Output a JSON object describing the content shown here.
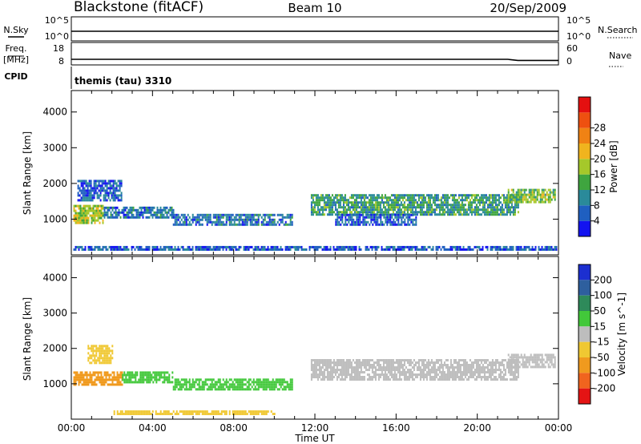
{
  "header": {
    "station": "Blackstone (fitACF)",
    "beam": "Beam 10",
    "date": "20/Sep/2009"
  },
  "strips": {
    "nsky_label": "N.Sky",
    "nsky_top": "10^5",
    "nsky_bottom": "10^0",
    "nsearch_label": "N.Search",
    "nsearch_top": "10^5",
    "nsearch_bottom": "10^0",
    "freq_label": "Freq.",
    "freq_unit": "[MHz]",
    "freq_top": "18",
    "freq_bottom": "8",
    "nave_label": "Nave",
    "nave_top": "60",
    "nave_bottom": "0",
    "cpid_label": "CPID",
    "cpid_value": "themis (tau) 3310"
  },
  "axes": {
    "y_label": "Slant Range [km]",
    "y_ticks": [
      "1000",
      "2000",
      "3000",
      "4000"
    ],
    "x_label": "Time UT",
    "x_ticks": [
      "00:00",
      "04:00",
      "08:00",
      "12:00",
      "16:00",
      "20:00",
      "00:00"
    ]
  },
  "colorbars": {
    "power": {
      "label": "Power [dB]",
      "ticks": [
        "4",
        "8",
        "12",
        "16",
        "20",
        "24",
        "28"
      ],
      "colors": [
        "#1313f0",
        "#1f5fc0",
        "#2a8a9a",
        "#3fa53f",
        "#a5c82a",
        "#f0b41e",
        "#f08214",
        "#ee5010",
        "#e41010"
      ]
    },
    "velocity": {
      "label": "Velocity [m s^-1]",
      "ticks": [
        "200",
        "100",
        "50",
        "15",
        "-15",
        "-50",
        "-100",
        "-200"
      ],
      "colors": [
        "#1c2fd0",
        "#2e5f9e",
        "#2e8a5a",
        "#42c83a",
        "#bdbdbd",
        "#f0c832",
        "#f09a1e",
        "#f0641e",
        "#e41414"
      ]
    }
  },
  "chart_data": [
    {
      "type": "line",
      "title": "N.Sky / N.Search",
      "x": [
        0,
        2,
        4,
        6,
        8,
        10,
        12,
        14,
        16,
        18,
        20,
        22,
        24
      ],
      "series": [
        {
          "name": "N.Sky",
          "values": [
            2.0,
            2.0,
            2.0,
            2.0,
            2.0,
            2.0,
            2.0,
            2.0,
            2.0,
            2.0,
            2.0,
            2.0,
            2.0
          ]
        }
      ],
      "xlim": [
        0,
        24
      ],
      "ylim": [
        0,
        5
      ],
      "xlabel": "",
      "ylabel": ""
    },
    {
      "type": "line",
      "title": "Freq. / Nave",
      "x": [
        0,
        4,
        8,
        12,
        16,
        20,
        21.5,
        22,
        24
      ],
      "series": [
        {
          "name": "Freq.",
          "values": [
            10.5,
            10.5,
            10.5,
            10.5,
            10.5,
            10.5,
            10.5,
            10.0,
            10.0
          ]
        }
      ],
      "xlim": [
        0,
        24
      ],
      "ylim": [
        8,
        18
      ],
      "xlabel": "",
      "ylabel": ""
    },
    {
      "type": "heatmap",
      "title": "Power [dB]",
      "xlabel": "Time UT",
      "ylabel": "Slant Range [km]",
      "xlim": [
        0,
        24
      ],
      "ylim": [
        0,
        4600
      ],
      "colorbar": "Power [dB]",
      "regions": [
        {
          "t": [
            0.1,
            1.6
          ],
          "range": [
            900,
            1400
          ],
          "value": 18
        },
        {
          "t": [
            1.6,
            5.0
          ],
          "range": [
            1050,
            1350
          ],
          "value": 8
        },
        {
          "t": [
            5.0,
            10.9
          ],
          "range": [
            850,
            1150
          ],
          "value": 8
        },
        {
          "t": [
            0.3,
            2.5
          ],
          "range": [
            1500,
            2100
          ],
          "value": 6
        },
        {
          "t": [
            11.8,
            22.0
          ],
          "range": [
            1150,
            1700
          ],
          "value": 12
        },
        {
          "t": [
            13.0,
            17.0
          ],
          "range": [
            850,
            1150
          ],
          "value": 6
        },
        {
          "t": [
            21.5,
            23.8
          ],
          "range": [
            1450,
            1850
          ],
          "value": 16
        },
        {
          "t": [
            0.1,
            23.9
          ],
          "range": [
            150,
            250
          ],
          "value": 6
        }
      ]
    },
    {
      "type": "heatmap",
      "title": "Velocity [m s^-1]",
      "xlabel": "Time UT",
      "ylabel": "Slant Range [km]",
      "xlim": [
        0,
        24
      ],
      "ylim": [
        0,
        4600
      ],
      "colorbar": "Velocity [m s^-1]",
      "regions": [
        {
          "t": [
            0.1,
            2.5
          ],
          "range": [
            950,
            1350
          ],
          "value": -60
        },
        {
          "t": [
            0.8,
            2.0
          ],
          "range": [
            1600,
            2100
          ],
          "value": -30
        },
        {
          "t": [
            2.5,
            5.0
          ],
          "range": [
            1050,
            1350
          ],
          "value": 30
        },
        {
          "t": [
            5.0,
            10.9
          ],
          "range": [
            850,
            1150
          ],
          "value": 30
        },
        {
          "t": [
            11.8,
            22.0
          ],
          "range": [
            1150,
            1700
          ],
          "value": 0
        },
        {
          "t": [
            21.5,
            23.8
          ],
          "range": [
            1450,
            1850
          ],
          "value": 0
        },
        {
          "t": [
            2.0,
            10.0
          ],
          "range": [
            150,
            250
          ],
          "value": -30
        }
      ]
    }
  ]
}
